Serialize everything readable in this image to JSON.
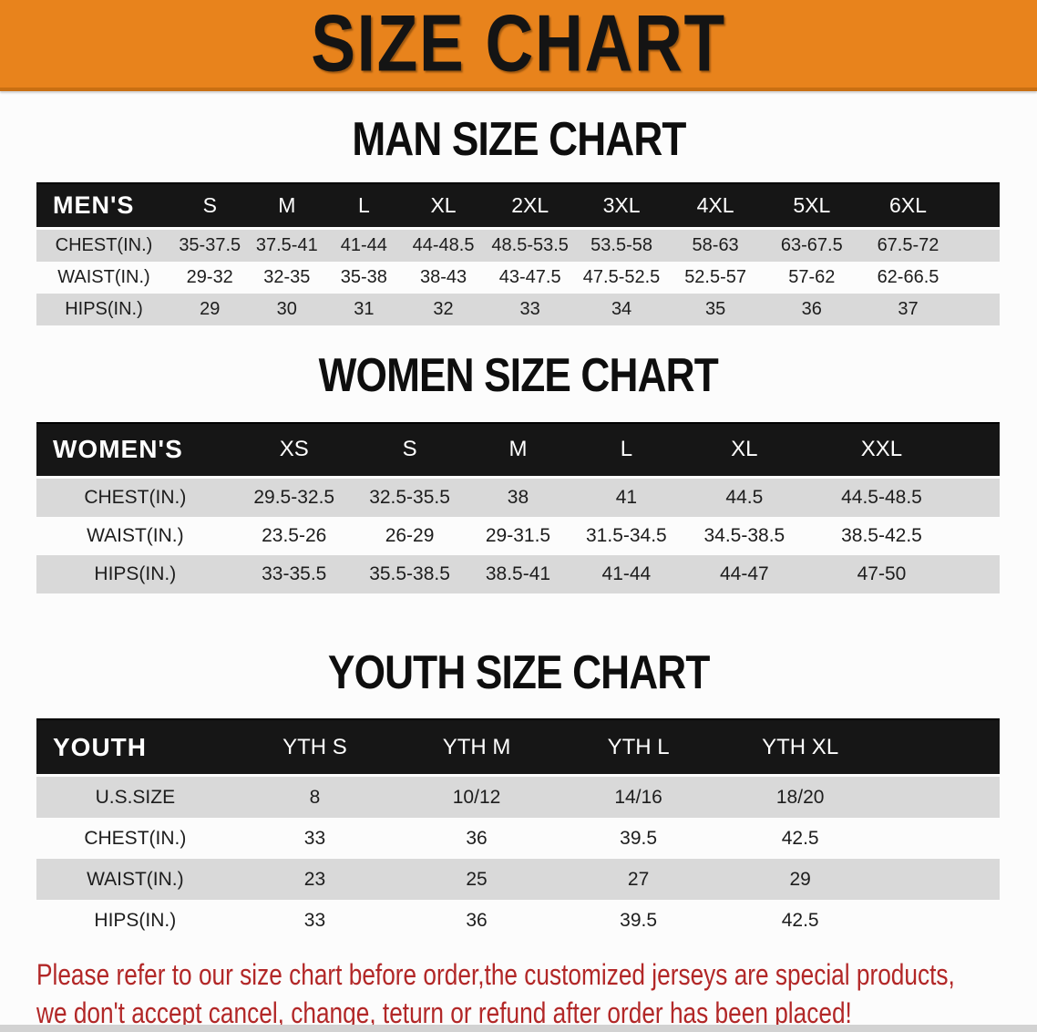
{
  "colors": {
    "accent": "#e8831c",
    "accent-dark": "#c96f12",
    "bar-black": "#161616",
    "row-gray": "#d9d9d9",
    "disclaimer-red": "#b22727"
  },
  "banner": {
    "title": "SIZE CHART"
  },
  "men": {
    "heading": "MAN SIZE CHART",
    "header_label": "MEN'S",
    "sizes": [
      "S",
      "M",
      "L",
      "XL",
      "2XL",
      "3XL",
      "4XL",
      "5XL",
      "6XL"
    ],
    "rows": [
      {
        "label": "CHEST(IN.)",
        "values": [
          "35-37.5",
          "37.5-41",
          "41-44",
          "44-48.5",
          "48.5-53.5",
          "53.5-58",
          "58-63",
          "63-67.5",
          "67.5-72"
        ]
      },
      {
        "label": "WAIST(IN.)",
        "values": [
          "29-32",
          "32-35",
          "35-38",
          "38-43",
          "43-47.5",
          "47.5-52.5",
          "52.5-57",
          "57-62",
          "62-66.5"
        ]
      },
      {
        "label": "HIPS(IN.)",
        "values": [
          "29",
          "30",
          "31",
          "32",
          "33",
          "34",
          "35",
          "36",
          "37"
        ]
      }
    ]
  },
  "women": {
    "heading": "WOMEN SIZE CHART",
    "header_label": "WOMEN'S",
    "sizes": [
      "XS",
      "S",
      "M",
      "L",
      "XL",
      "XXL"
    ],
    "rows": [
      {
        "label": "CHEST(IN.)",
        "values": [
          "29.5-32.5",
          "32.5-35.5",
          "38",
          "41",
          "44.5",
          "44.5-48.5"
        ]
      },
      {
        "label": "WAIST(IN.)",
        "values": [
          "23.5-26",
          "26-29",
          "29-31.5",
          "31.5-34.5",
          "34.5-38.5",
          "38.5-42.5"
        ]
      },
      {
        "label": "HIPS(IN.)",
        "values": [
          "33-35.5",
          "35.5-38.5",
          "38.5-41",
          "41-44",
          "44-47",
          "47-50"
        ]
      }
    ]
  },
  "youth": {
    "heading": "YOUTH SIZE CHART",
    "header_label": "YOUTH",
    "sizes": [
      "YTH S",
      "YTH M",
      "YTH L",
      "YTH XL"
    ],
    "rows": [
      {
        "label": "U.S.SIZE",
        "values": [
          "8",
          "10/12",
          "14/16",
          "18/20"
        ]
      },
      {
        "label": "CHEST(IN.)",
        "values": [
          "33",
          "36",
          "39.5",
          "42.5"
        ]
      },
      {
        "label": "WAIST(IN.)",
        "values": [
          "23",
          "25",
          "27",
          "29"
        ]
      },
      {
        "label": "HIPS(IN.)",
        "values": [
          "33",
          "36",
          "39.5",
          "42.5"
        ]
      }
    ]
  },
  "disclaimer": {
    "line1": "Please refer to our size chart before order,the customized jerseys are special products,",
    "line2": "we don't accept cancel, change, teturn or refund after order has been placed!"
  }
}
